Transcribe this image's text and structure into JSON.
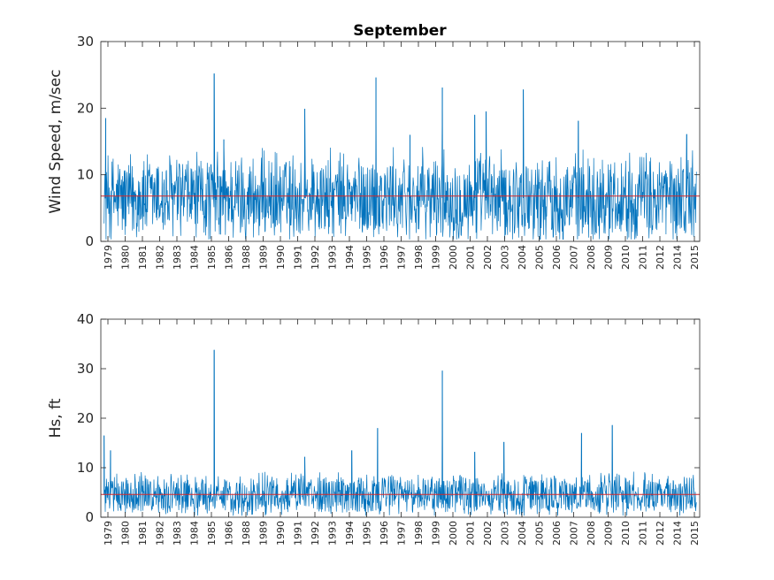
{
  "colors": {
    "series": "#0072BD",
    "mean_line": "#D62728",
    "axis": "#262626",
    "background": "#ffffff"
  },
  "chart_data": [
    {
      "type": "line",
      "title": "September",
      "xlabel": "",
      "ylabel": "Wind Speed, m/sec",
      "xlim": [
        1978.7,
        2015.7
      ],
      "ylim": [
        0,
        30
      ],
      "yticks": [
        0,
        10,
        20,
        30
      ],
      "xticks": [
        "1979",
        "1980",
        "1981",
        "1982",
        "1983",
        "1984",
        "1985",
        "1986",
        "1988",
        "1989",
        "1990",
        "1991",
        "1992",
        "1993",
        "1994",
        "1995",
        "1996",
        "1997",
        "1998",
        "1999",
        "2000",
        "2001",
        "2002",
        "2003",
        "2004",
        "2005",
        "2006",
        "2007",
        "2008",
        "2009",
        "2010",
        "2011",
        "2012",
        "2014",
        "2015"
      ],
      "mean": 6.8,
      "base_level": 6.5,
      "noise_range": [
        1,
        14
      ],
      "series": [
        {
          "values": []
        }
      ],
      "peaks": [
        {
          "x": 1979.0,
          "y": 18.5
        },
        {
          "x": 1985.7,
          "y": 25.2
        },
        {
          "x": 1991.3,
          "y": 19.9
        },
        {
          "x": 1995.7,
          "y": 24.6
        },
        {
          "x": 1999.8,
          "y": 23.1
        },
        {
          "x": 2001.8,
          "y": 19.0
        },
        {
          "x": 2004.8,
          "y": 22.8
        },
        {
          "x": 2002.5,
          "y": 19.5
        },
        {
          "x": 2008.2,
          "y": 18.1
        },
        {
          "x": 1986.3,
          "y": 15.3
        },
        {
          "x": 1997.8,
          "y": 16.0
        },
        {
          "x": 2014.9,
          "y": 16.1
        }
      ]
    },
    {
      "type": "line",
      "title": "",
      "xlabel": "",
      "ylabel": "Hs, ft",
      "xlim": [
        1978.7,
        2015.7
      ],
      "ylim": [
        0,
        40
      ],
      "yticks": [
        0,
        10,
        20,
        30,
        40
      ],
      "xticks": [
        "1979",
        "1980",
        "1981",
        "1982",
        "1983",
        "1984",
        "1985",
        "1986",
        "1988",
        "1989",
        "1990",
        "1991",
        "1992",
        "1993",
        "1994",
        "1995",
        "1996",
        "1997",
        "1998",
        "1999",
        "2000",
        "2001",
        "2002",
        "2003",
        "2004",
        "2005",
        "2006",
        "2007",
        "2008",
        "2009",
        "2010",
        "2011",
        "2012",
        "2014",
        "2015"
      ],
      "mean": 4.6,
      "base_level": 4.5,
      "noise_range": [
        1,
        9
      ],
      "series": [
        {
          "values": []
        }
      ],
      "peaks": [
        {
          "x": 1978.9,
          "y": 16.5
        },
        {
          "x": 1979.3,
          "y": 13.5
        },
        {
          "x": 1985.7,
          "y": 33.8
        },
        {
          "x": 1999.8,
          "y": 29.6
        },
        {
          "x": 1995.8,
          "y": 18.0
        },
        {
          "x": 2010.3,
          "y": 18.6
        },
        {
          "x": 2008.4,
          "y": 17.0
        },
        {
          "x": 2003.6,
          "y": 15.2
        },
        {
          "x": 2001.8,
          "y": 13.2
        },
        {
          "x": 1991.3,
          "y": 12.2
        },
        {
          "x": 1994.2,
          "y": 13.5
        }
      ]
    }
  ]
}
